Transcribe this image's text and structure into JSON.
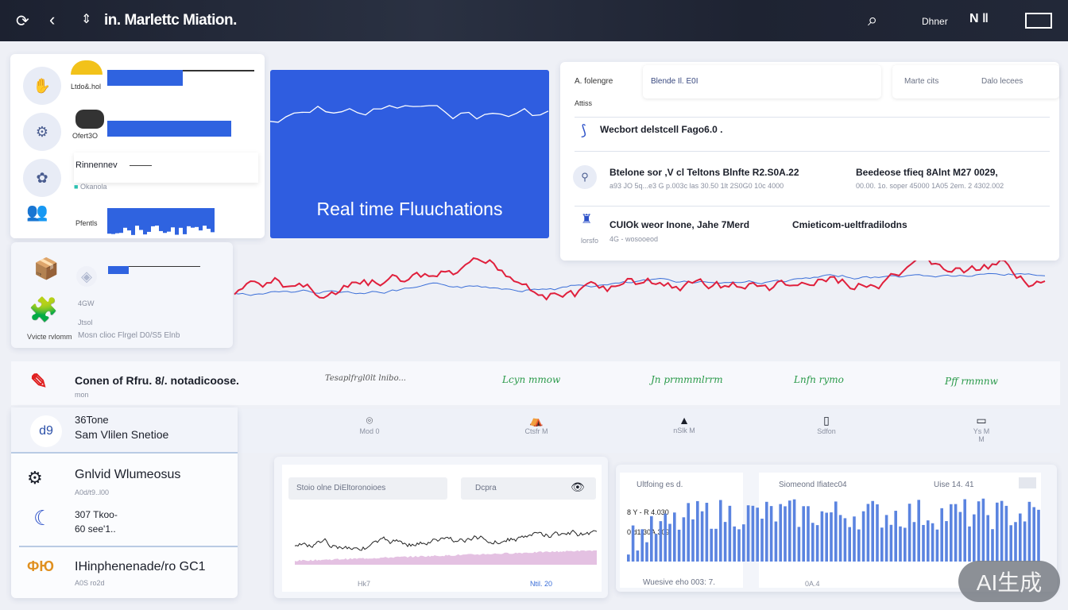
{
  "header": {
    "title": "in. Marlettc Miation.",
    "right_label": "Dhner",
    "refresh_icon": "refresh-icon",
    "back_icon": "chevron-left-icon",
    "sort_icon": "sort-icon",
    "search_icon": "search-icon",
    "layout_icon": "columns-icon",
    "window_icon": "window-icon"
  },
  "left_panel": {
    "items": [
      {
        "label": "Ltdo&.hol",
        "icon": "hand-icon"
      },
      {
        "label": "Ofert3O",
        "icon": "coin-icon"
      },
      {
        "label": "Rinnennev",
        "sub": "Okanola",
        "icon": "brain-icon"
      },
      {
        "label": "Pfentls",
        "icon": "people-icon"
      }
    ]
  },
  "left_panel2": {
    "line1": "4GW",
    "line2": "Jtsol",
    "footer": "Mosn clioc Flrgel D0/S5 Elnb",
    "badge": "Vvicte rvlomm"
  },
  "hero": {
    "title": "Real time Fluuchations",
    "color": "#2f5de0"
  },
  "right_card": {
    "filter_label": "A. folengre",
    "search_value": "Blende Il. E0I",
    "tab1": "Marte cits",
    "tab2": "Dalo lecees",
    "section": "Attiss",
    "rows": [
      {
        "title": "Wecbort delstcell Fago6.0 ."
      },
      {
        "title": "Btelone sor ,V cl Teltons Blnfte R2.S0A.22",
        "sub": "a93 JO 5q...e3 G p.003c las 30.50 1lt 2S0G0 10c 4000",
        "title2": "Beedeose tfieq 8Alnt M27 0029,",
        "sub2": "00.00. 1o. soper 45000 1A05 2em. 2 4302.002"
      },
      {
        "title": "CUIOk weor Inone, Jahe 7Merd",
        "sub": "4G - wosooeod",
        "title2": "Cmieticom-ueltfradilodns",
        "icon_label": "lorsfo"
      }
    ]
  },
  "news": {
    "logo_icon": "red-logo-icon",
    "title": "Conen of Rfru. 8/. notadicoose.",
    "sub": "mon",
    "signals": [
      "Tesaplfrgl0lt lnibo...",
      "Lcyn mmow",
      "Jn prmmmlrrm",
      "Lnfn rymo",
      "Pff rmmnw"
    ]
  },
  "icons_row": [
    {
      "icon": "location-pin-icon",
      "label": "Mod 0"
    },
    {
      "icon": "tent-icon",
      "label": "Ctsfr M"
    },
    {
      "icon": "cone-icon",
      "label": "nSlk M"
    },
    {
      "icon": "phone-icon",
      "label": "Sdfon"
    },
    {
      "icon": "tablet-icon",
      "label": "Ys M M"
    }
  ],
  "list": [
    {
      "avatar": "d9",
      "title": "36Tone",
      "sub": "Sam Vlilen Snetioe"
    },
    {
      "title": "Gnlvid Wlumeosus",
      "sub": "A0d/t9..l00"
    },
    {
      "title": "307 Tkoo-",
      "sub": "60 see'1.."
    },
    {
      "title": "IHinphenenade/ro GC1",
      "sub": "A0S ro2d"
    }
  ],
  "line_chart": {
    "search_placeholder": "Stoio olne DiEltoronoioes",
    "dropdown": "Dcpra",
    "x_left": "Hk7",
    "x_right": "Ntil. 20",
    "colors": {
      "line": "#222222",
      "area": "#d9a6d6"
    }
  },
  "bar_chart": {
    "title_left": "Ultfoing es d.",
    "val1": "8 Y - R 4.030",
    "val2": "0 d1 30A.309",
    "title_mid": "Siomeond Ifiatec04",
    "title_right": "Uise 14. 41",
    "footer_left": "Wuesive eho 003: 7.",
    "footer_right": "0A.4",
    "color": "#5b84e0"
  },
  "red_chart": {
    "colors": {
      "main": "#e0203c",
      "secondary": "#3a6ed8"
    }
  },
  "watermark": "AI生成"
}
